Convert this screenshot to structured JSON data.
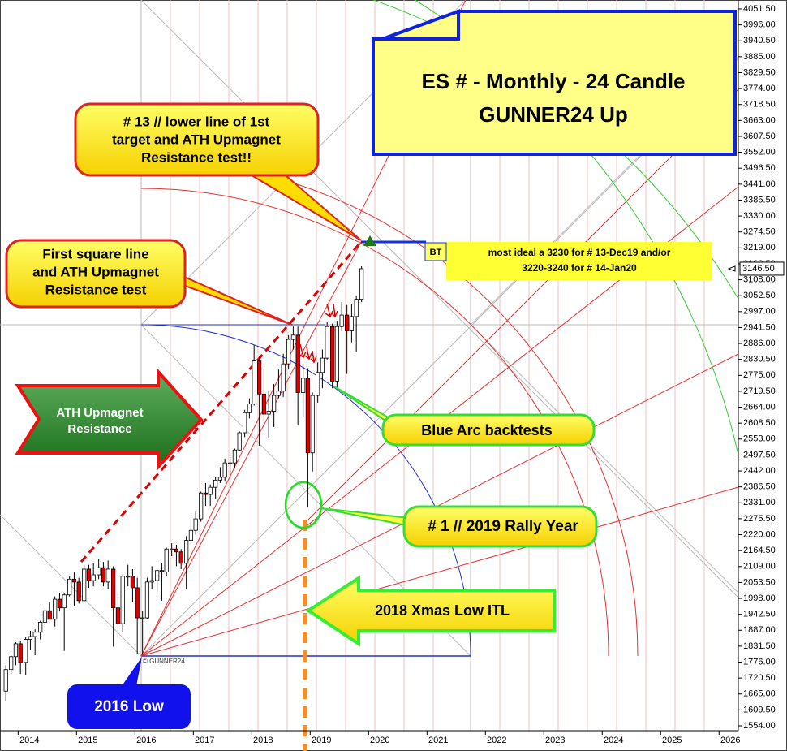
{
  "chart_data": {
    "type": "candlestick",
    "title": [
      "ES # - Monthly - 24 Candle",
      "GUNNER24 Up"
    ],
    "x": [
      2013.79,
      2013.88,
      2013.96,
      2014.04,
      2014.13,
      2014.21,
      2014.29,
      2014.38,
      2014.46,
      2014.54,
      2014.63,
      2014.71,
      2014.79,
      2014.88,
      2014.96,
      2015.04,
      2015.13,
      2015.21,
      2015.29,
      2015.38,
      2015.46,
      2015.54,
      2015.63,
      2015.71,
      2015.79,
      2015.88,
      2015.96,
      2016.04,
      2016.13,
      2016.21,
      2016.29,
      2016.38,
      2016.46,
      2016.54,
      2016.63,
      2016.71,
      2016.79,
      2016.88,
      2016.96,
      2017.04,
      2017.13,
      2017.21,
      2017.29,
      2017.38,
      2017.46,
      2017.54,
      2017.63,
      2017.71,
      2017.79,
      2017.88,
      2017.96,
      2018.04,
      2018.13,
      2018.21,
      2018.29,
      2018.38,
      2018.46,
      2018.54,
      2018.63,
      2018.71,
      2018.79,
      2018.88,
      2018.96,
      2019.04,
      2019.13,
      2019.21,
      2019.29,
      2019.38,
      2019.46,
      2019.54,
      2019.63,
      2019.71,
      2019.79,
      2019.88
    ],
    "open": [
      1675,
      1750,
      1795,
      1840,
      1775,
      1855,
      1865,
      1880,
      1915,
      1955,
      1925,
      1995,
      1965,
      2010,
      2065,
      2055,
      1990,
      2100,
      2060,
      2080,
      2105,
      2055,
      2100,
      1965,
      1910,
      2075,
      2075,
      2035,
      1930,
      1930,
      2055,
      2060,
      2095,
      2090,
      2170,
      2170,
      2160,
      2120,
      2200,
      2235,
      2275,
      2365,
      2360,
      2385,
      2410,
      2420,
      2470,
      2470,
      2515,
      2575,
      2645,
      2675,
      2825,
      2710,
      2640,
      2650,
      2705,
      2720,
      2815,
      2900,
      2915,
      2715,
      2765,
      2505,
      2705,
      2785,
      2835,
      2945,
      2755,
      2945,
      2985,
      2930,
      2980,
      3040
    ],
    "high": [
      1765,
      1800,
      1845,
      1850,
      1865,
      1885,
      1890,
      1920,
      1965,
      1985,
      2005,
      2015,
      2015,
      2075,
      2090,
      2070,
      2115,
      2115,
      2120,
      2135,
      2125,
      2130,
      2110,
      2020,
      2080,
      2115,
      2100,
      2070,
      1955,
      2070,
      2110,
      2100,
      2120,
      2175,
      2190,
      2185,
      2170,
      2215,
      2275,
      2300,
      2370,
      2400,
      2395,
      2420,
      2455,
      2485,
      2490,
      2520,
      2580,
      2655,
      2695,
      2880,
      2840,
      2800,
      2720,
      2745,
      2795,
      2850,
      2915,
      2945,
      2945,
      2815,
      2800,
      2715,
      2820,
      2865,
      2960,
      2955,
      2965,
      3030,
      3020,
      3025,
      3050,
      3155
    ],
    "low": [
      1640,
      1735,
      1765,
      1735,
      1730,
      1820,
      1800,
      1855,
      1905,
      1925,
      1900,
      1955,
      1815,
      2005,
      1970,
      1980,
      1985,
      2035,
      2040,
      2065,
      2040,
      2030,
      1830,
      1865,
      1880,
      2040,
      1985,
      1805,
      1802,
      1925,
      2030,
      2020,
      1990,
      2075,
      2145,
      2110,
      2100,
      2030,
      2185,
      2220,
      2265,
      2320,
      2320,
      2345,
      2400,
      2405,
      2415,
      2450,
      2510,
      2560,
      2625,
      2670,
      2530,
      2580,
      2555,
      2595,
      2695,
      2700,
      2795,
      2865,
      2600,
      2630,
      2317,
      2440,
      2680,
      2730,
      2830,
      2730,
      2730,
      2930,
      2780,
      2890,
      2855,
      3030
    ],
    "close": [
      1750,
      1795,
      1840,
      1775,
      1855,
      1865,
      1880,
      1915,
      1955,
      1925,
      1995,
      1965,
      2010,
      2065,
      2055,
      1990,
      2100,
      2060,
      2080,
      2105,
      2055,
      2100,
      1965,
      1910,
      2075,
      2075,
      2035,
      1930,
      1930,
      2055,
      2060,
      2095,
      2090,
      2170,
      2170,
      2160,
      2120,
      2200,
      2235,
      2275,
      2365,
      2360,
      2385,
      2410,
      2420,
      2470,
      2470,
      2515,
      2575,
      2645,
      2675,
      2825,
      2710,
      2640,
      2650,
      2705,
      2720,
      2815,
      2900,
      2915,
      2715,
      2765,
      2505,
      2705,
      2785,
      2835,
      2945,
      2755,
      2945,
      2985,
      2930,
      2980,
      3040,
      3146.5
    ],
    "up_color": "#ffffff",
    "down_color": "#dd0000",
    "xlim": [
      2013.69,
      2026.33
    ],
    "xticks": [
      2014,
      2015,
      2016,
      2017,
      2018,
      2019,
      2020,
      2021,
      2022,
      2023,
      2024,
      2025,
      2026
    ],
    "ylim": [
      1554,
      4051.5
    ],
    "yticks": [
      {
        "value": 1554,
        "label": "1554.00"
      },
      {
        "value": 1609.5,
        "label": "1609.50"
      },
      {
        "value": 1665,
        "label": "1665.00"
      },
      {
        "value": 1720.5,
        "label": "1720.50"
      },
      {
        "value": 1776,
        "label": "1776.00"
      },
      {
        "value": 1831.5,
        "label": "1831.50"
      },
      {
        "value": 1887,
        "label": "1887.00"
      },
      {
        "value": 1942.5,
        "label": "1942.50"
      },
      {
        "value": 1998,
        "label": "1998.00"
      },
      {
        "value": 2053.5,
        "label": "2053.50"
      },
      {
        "value": 2109,
        "label": "2109.00"
      },
      {
        "value": 2164.5,
        "label": "2164.50"
      },
      {
        "value": 2220,
        "label": "2220.00"
      },
      {
        "value": 2275.5,
        "label": "2275.50"
      },
      {
        "value": 2331,
        "label": "2331.00"
      },
      {
        "value": 2386.5,
        "label": "2386.50"
      },
      {
        "value": 2442,
        "label": "2442.00"
      },
      {
        "value": 2497.5,
        "label": "2497.50"
      },
      {
        "value": 2553,
        "label": "2553.00"
      },
      {
        "value": 2608.5,
        "label": "2608.50"
      },
      {
        "value": 2664,
        "label": "2664.00"
      },
      {
        "value": 2719.5,
        "label": "2719.50"
      },
      {
        "value": 2775,
        "label": "2775.00"
      },
      {
        "value": 2830.5,
        "label": "2830.50"
      },
      {
        "value": 2886,
        "label": "2886.00"
      },
      {
        "value": 2941.5,
        "label": "2941.50"
      },
      {
        "value": 2997,
        "label": "2997.00"
      },
      {
        "value": 3052.5,
        "label": "3052.50"
      },
      {
        "value": 3108,
        "label": "3108.00"
      },
      {
        "value": 3163.5,
        "label": "3163.50"
      },
      {
        "value": 3219,
        "label": "3219.00"
      },
      {
        "value": 3274.5,
        "label": "3274.50"
      },
      {
        "value": 3330,
        "label": "3330.00"
      },
      {
        "value": 3385.5,
        "label": "3385.50"
      },
      {
        "value": 3441,
        "label": "3441.00"
      },
      {
        "value": 3496.5,
        "label": "3496.50"
      },
      {
        "value": 3552,
        "label": "3552.00"
      },
      {
        "value": 3607.5,
        "label": "3607.50"
      },
      {
        "value": 3663,
        "label": "3663.00"
      },
      {
        "value": 3718.5,
        "label": "3718.50"
      },
      {
        "value": 3774,
        "label": "3774.00"
      },
      {
        "value": 3829.5,
        "label": "3829.50"
      },
      {
        "value": 3885,
        "label": "3885.00"
      },
      {
        "value": 3940.5,
        "label": "3940.50"
      },
      {
        "value": 3996,
        "label": "3996.00"
      },
      {
        "value": 4051.5,
        "label": "4051.50"
      }
    ],
    "current_price": {
      "value": 3146.5,
      "label": "3146.50"
    },
    "annotations": [
      {
        "lines": [
          "# 13 // lower line of 1st",
          "target and ATH Upmagnet",
          "Resistance test!!"
        ]
      },
      {
        "lines": [
          "First square line",
          "and ATH Upmagnet",
          "Resistance test"
        ]
      },
      {
        "lines": [
          "ATH Upmagnet",
          "Resistance"
        ]
      },
      {
        "lines": [
          "Blue Arc backtests"
        ]
      },
      {
        "lines": [
          "# 1 // 2019 Rally Year"
        ]
      },
      {
        "lines": [
          "2018 Xmas Low ITL"
        ]
      },
      {
        "lines": [
          "2016 Low"
        ]
      },
      {
        "lines": [
          "most ideal a 3230 for # 13-Dec19 and/or",
          "3220-3240 for # 14-Jan20"
        ]
      },
      {
        "lines": [
          "BT"
        ]
      },
      {
        "lines": [
          "© GUNNER24"
        ]
      }
    ]
  }
}
